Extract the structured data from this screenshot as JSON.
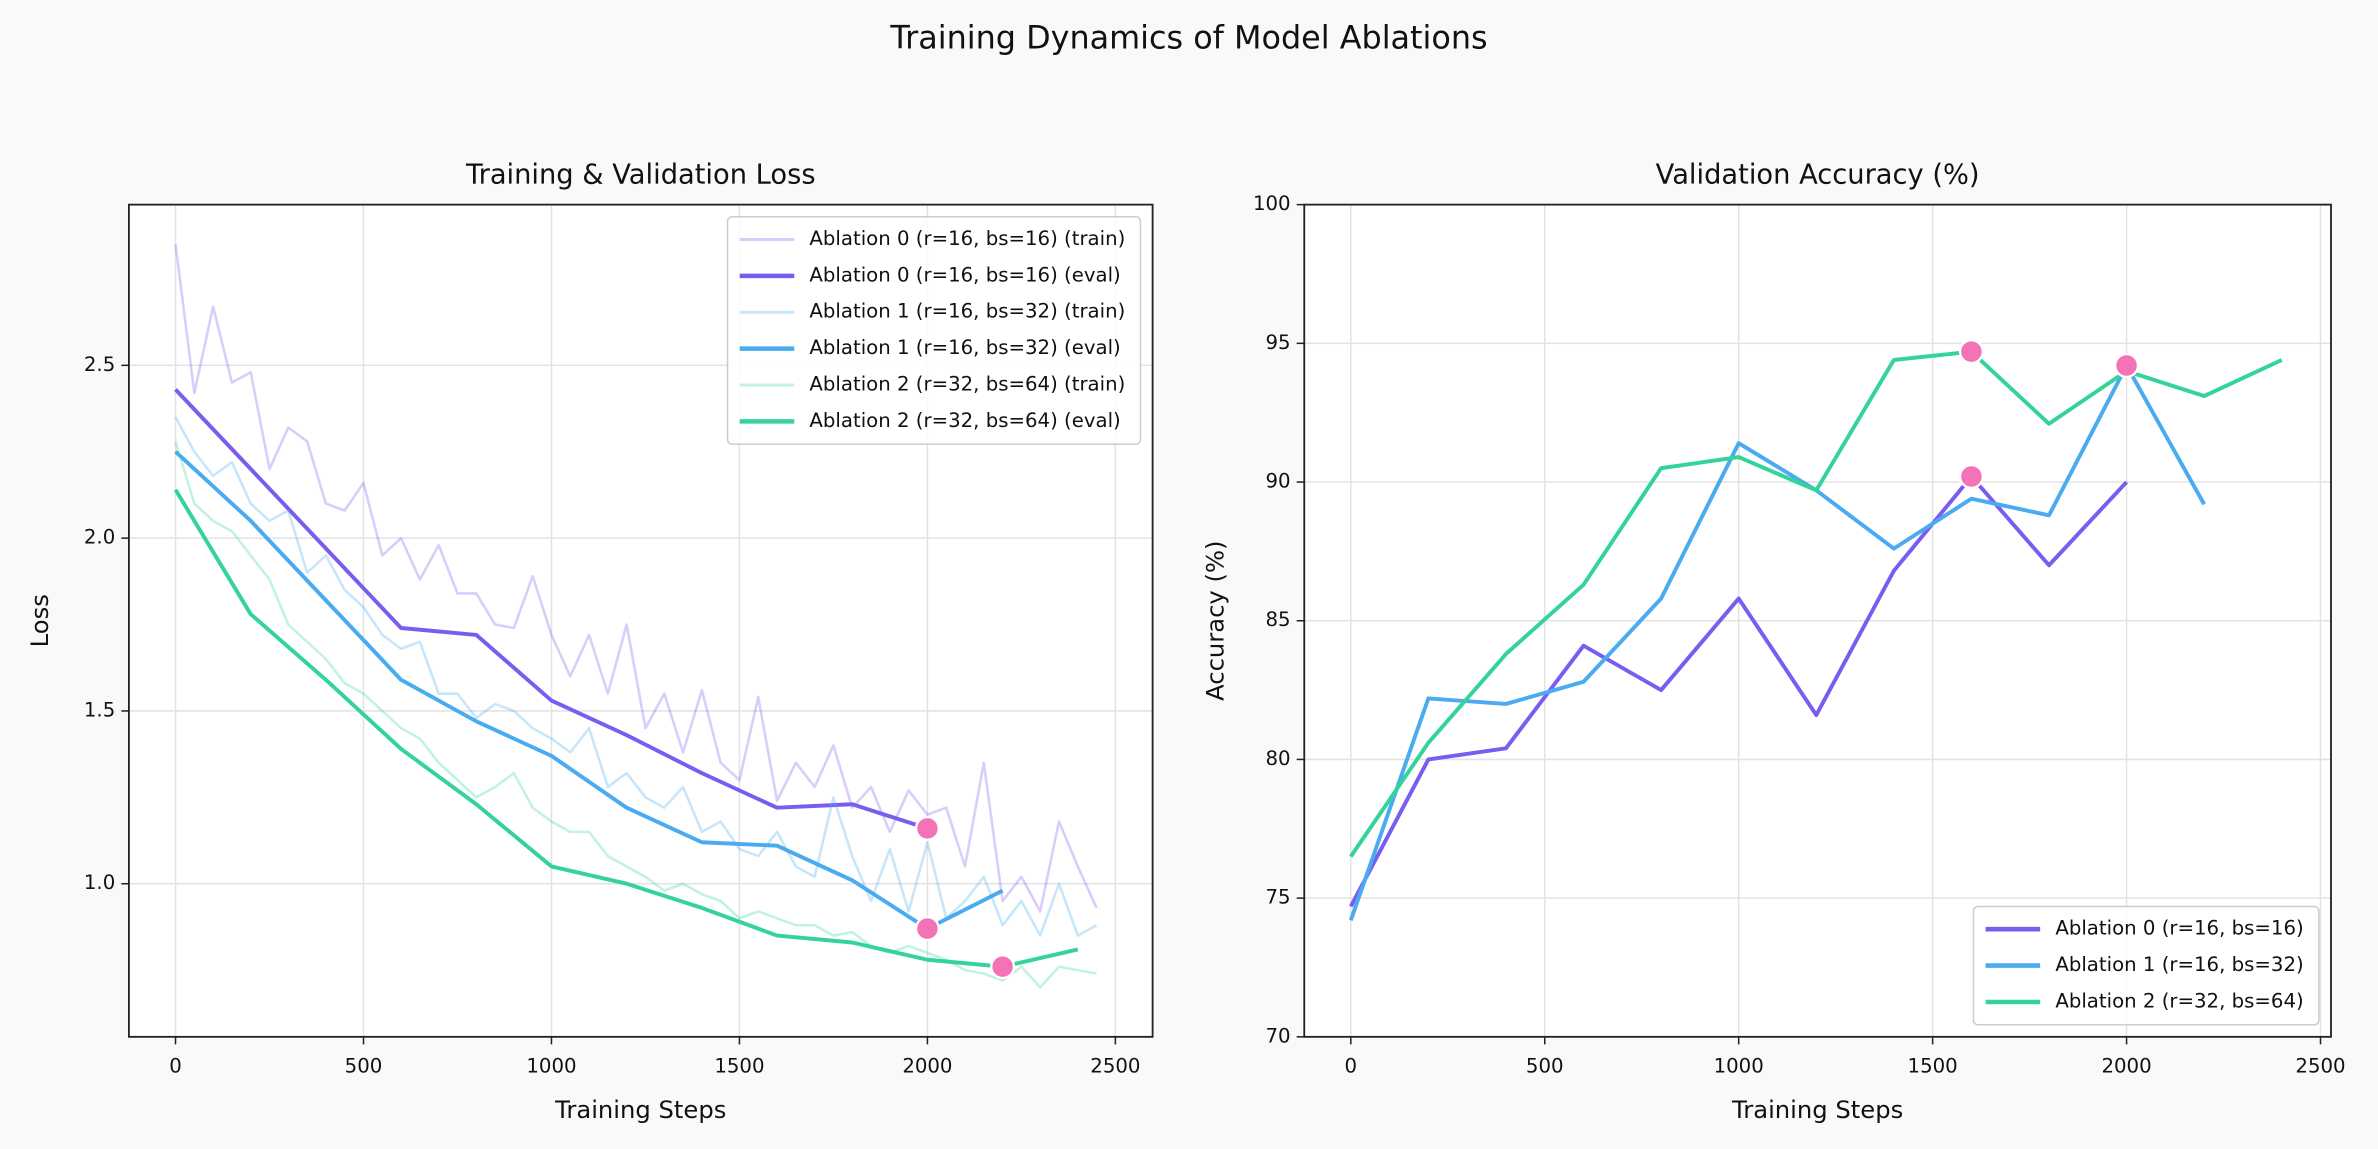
{
  "title": "Training Dynamics of Model Ablations",
  "chart_data": [
    {
      "type": "line",
      "title": "Training & Validation Loss",
      "xlabel": "Training Steps",
      "ylabel": "Loss",
      "xlim": [
        -124,
        2599
      ],
      "ylim": [
        0.557,
        2.965
      ],
      "xticks": [
        0,
        500,
        1000,
        1500,
        2000,
        2500
      ],
      "yticks": [
        {
          "value": 1.0,
          "label": "1.0"
        },
        {
          "value": 1.5,
          "label": "1.5"
        },
        {
          "value": 2.0,
          "label": "2.0"
        },
        {
          "value": 2.5,
          "label": "2.5"
        }
      ],
      "grid": true,
      "legend": "upper right",
      "series": [
        {
          "name": "Ablation 0 (r=16, bs=16) (train)",
          "color": "#7b5cf0",
          "alpha": 0.3,
          "x": [
            0,
            50,
            100,
            150,
            200,
            250,
            300,
            350,
            400,
            450,
            500,
            550,
            600,
            650,
            700,
            750,
            800,
            850,
            900,
            950,
            1000,
            1050,
            1100,
            1150,
            1200,
            1250,
            1300,
            1350,
            1400,
            1450,
            1500,
            1550,
            1600,
            1650,
            1700,
            1750,
            1800,
            1850,
            1900,
            1950,
            2000,
            2050,
            2100,
            2150,
            2200,
            2250,
            2300,
            2350,
            2400,
            2450
          ],
          "values": [
            2.85,
            2.42,
            2.67,
            2.45,
            2.48,
            2.2,
            2.32,
            2.28,
            2.1,
            2.08,
            2.16,
            1.95,
            2.0,
            1.88,
            1.98,
            1.84,
            1.84,
            1.75,
            1.74,
            1.89,
            1.72,
            1.6,
            1.72,
            1.55,
            1.75,
            1.45,
            1.55,
            1.38,
            1.56,
            1.35,
            1.3,
            1.54,
            1.24,
            1.35,
            1.28,
            1.4,
            1.22,
            1.28,
            1.15,
            1.27,
            1.2,
            1.22,
            1.05,
            1.35,
            0.95,
            1.02,
            0.92,
            1.18,
            1.05,
            0.93
          ]
        },
        {
          "name": "Ablation 0 (r=16, bs=16) (eval)",
          "color": "#7b5cf0",
          "x": [
            0,
            200,
            400,
            600,
            800,
            1000,
            1200,
            1400,
            1600,
            1800,
            2000
          ],
          "values": [
            2.43,
            2.2,
            1.97,
            1.74,
            1.72,
            1.53,
            1.43,
            1.32,
            1.22,
            1.23,
            1.16
          ]
        },
        {
          "name": "Ablation 1 (r=16, bs=32) (train)",
          "color": "#4aabf0",
          "alpha": 0.3,
          "x": [
            0,
            50,
            100,
            150,
            200,
            250,
            300,
            350,
            400,
            450,
            500,
            550,
            600,
            650,
            700,
            750,
            800,
            850,
            900,
            950,
            1000,
            1050,
            1100,
            1150,
            1200,
            1250,
            1300,
            1350,
            1400,
            1450,
            1500,
            1550,
            1600,
            1650,
            1700,
            1750,
            1800,
            1850,
            1900,
            1950,
            2000,
            2050,
            2100,
            2150,
            2200,
            2250,
            2300,
            2350,
            2400,
            2450
          ],
          "values": [
            2.35,
            2.25,
            2.18,
            2.22,
            2.1,
            2.05,
            2.08,
            1.9,
            1.95,
            1.85,
            1.8,
            1.72,
            1.68,
            1.7,
            1.55,
            1.55,
            1.48,
            1.52,
            1.5,
            1.45,
            1.42,
            1.38,
            1.45,
            1.28,
            1.32,
            1.25,
            1.22,
            1.28,
            1.15,
            1.18,
            1.1,
            1.08,
            1.15,
            1.05,
            1.02,
            1.25,
            1.08,
            0.95,
            1.1,
            0.92,
            1.12,
            0.9,
            0.95,
            1.02,
            0.88,
            0.95,
            0.85,
            1.0,
            0.85,
            0.88
          ]
        },
        {
          "name": "Ablation 1 (r=16, bs=32) (eval)",
          "color": "#4aabf0",
          "x": [
            0,
            200,
            400,
            600,
            800,
            1000,
            1200,
            1400,
            1600,
            1800,
            2000,
            2200
          ],
          "values": [
            2.25,
            2.05,
            1.82,
            1.59,
            1.47,
            1.37,
            1.22,
            1.12,
            1.11,
            1.01,
            0.87,
            0.98
          ]
        },
        {
          "name": "Ablation 2 (r=32, bs=64) (train)",
          "color": "#34d399",
          "alpha": 0.3,
          "x": [
            0,
            50,
            100,
            150,
            200,
            250,
            300,
            350,
            400,
            450,
            500,
            550,
            600,
            650,
            700,
            750,
            800,
            850,
            900,
            950,
            1000,
            1050,
            1100,
            1150,
            1200,
            1250,
            1300,
            1350,
            1400,
            1450,
            1500,
            1550,
            1600,
            1650,
            1700,
            1750,
            1800,
            1850,
            1900,
            1950,
            2000,
            2050,
            2100,
            2150,
            2200,
            2250,
            2300,
            2350,
            2400,
            2450
          ],
          "values": [
            2.28,
            2.1,
            2.05,
            2.02,
            1.95,
            1.88,
            1.75,
            1.7,
            1.65,
            1.58,
            1.55,
            1.5,
            1.45,
            1.42,
            1.35,
            1.3,
            1.25,
            1.28,
            1.32,
            1.22,
            1.18,
            1.15,
            1.15,
            1.08,
            1.05,
            1.02,
            0.98,
            1.0,
            0.97,
            0.95,
            0.9,
            0.92,
            0.9,
            0.88,
            0.88,
            0.85,
            0.86,
            0.82,
            0.8,
            0.82,
            0.8,
            0.78,
            0.75,
            0.74,
            0.72,
            0.76,
            0.7,
            0.76,
            0.75,
            0.74
          ]
        },
        {
          "name": "Ablation 2 (r=32, bs=64) (eval)",
          "color": "#34d399",
          "x": [
            0,
            200,
            400,
            600,
            800,
            1000,
            1200,
            1400,
            1600,
            1800,
            2000,
            2200,
            2400
          ],
          "values": [
            2.14,
            1.78,
            1.59,
            1.39,
            1.23,
            1.05,
            1.0,
            0.93,
            0.85,
            0.83,
            0.78,
            0.76,
            0.81
          ]
        }
      ],
      "markers": {
        "color": "#f472b6",
        "x": [
          2000,
          2000,
          2200
        ],
        "values": [
          1.16,
          0.87,
          0.76
        ]
      }
    },
    {
      "type": "line",
      "title": "Validation Accuracy (%)",
      "xlabel": "Training Steps",
      "ylabel": "Accuracy (%)",
      "xlim": [
        -120,
        2527
      ],
      "ylim": [
        70,
        100
      ],
      "xticks": [
        0,
        500,
        1000,
        1500,
        2000,
        2500
      ],
      "yticks": [
        70,
        75,
        80,
        85,
        90,
        95,
        100
      ],
      "grid": true,
      "legend": "lower right",
      "series": [
        {
          "name": "Ablation 0 (r=16, bs=16)",
          "color": "#7b5cf0",
          "x": [
            0,
            200,
            400,
            600,
            800,
            1000,
            1200,
            1400,
            1600,
            1800,
            2000
          ],
          "values": [
            74.7,
            80.0,
            80.4,
            84.1,
            82.5,
            85.8,
            81.6,
            86.8,
            90.2,
            87.0,
            90.0
          ]
        },
        {
          "name": "Ablation 1 (r=16, bs=32)",
          "color": "#4aabf0",
          "x": [
            0,
            200,
            400,
            600,
            800,
            1000,
            1200,
            1400,
            1600,
            1800,
            2000,
            2200
          ],
          "values": [
            74.2,
            82.2,
            82.0,
            82.8,
            85.8,
            91.4,
            89.7,
            87.6,
            89.4,
            88.8,
            94.2,
            89.2
          ]
        },
        {
          "name": "Ablation 2 (r=32, bs=64)",
          "color": "#34d399",
          "x": [
            0,
            200,
            400,
            600,
            800,
            1000,
            1200,
            1400,
            1600,
            1800,
            2000,
            2200,
            2400
          ],
          "values": [
            76.5,
            80.6,
            83.8,
            86.3,
            90.5,
            90.9,
            89.7,
            94.4,
            94.7,
            92.1,
            94.0,
            93.1,
            94.4
          ]
        }
      ],
      "markers": {
        "color": "#f472b6",
        "x": [
          1600,
          2000,
          1600
        ],
        "values": [
          94.7,
          94.2,
          90.2
        ]
      }
    }
  ]
}
